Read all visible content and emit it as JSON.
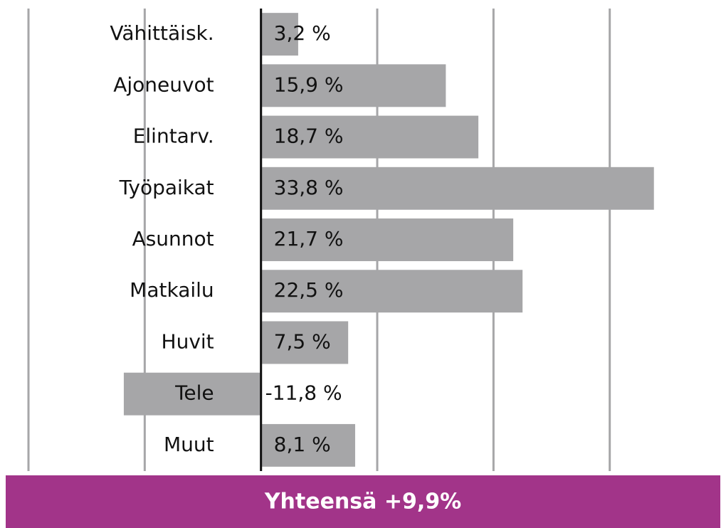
{
  "chart_data": {
    "type": "barh",
    "categories": [
      "Vähittäisk.",
      "Ajoneuvot",
      "Elintarv.",
      "Työpaikat",
      "Asunnot",
      "Matkailu",
      "Huvit",
      "Tele",
      "Muut"
    ],
    "values": [
      3.2,
      15.9,
      18.7,
      33.8,
      21.7,
      22.5,
      7.5,
      -11.8,
      8.1
    ],
    "value_labels": [
      "3,2 %",
      "15,9 %",
      "18,7 %",
      "33,8 %",
      "21,7 %",
      "22,5 %",
      "7,5 %",
      "-11,8 %",
      "8,1 %"
    ],
    "color": "#a6a6a8",
    "xlim": [
      -20,
      40
    ],
    "xticks": [
      -20,
      -10,
      0,
      10,
      20,
      30
    ],
    "grid": true,
    "footer": "Yhteensä +9,9%",
    "footer_color": "#a23489"
  }
}
